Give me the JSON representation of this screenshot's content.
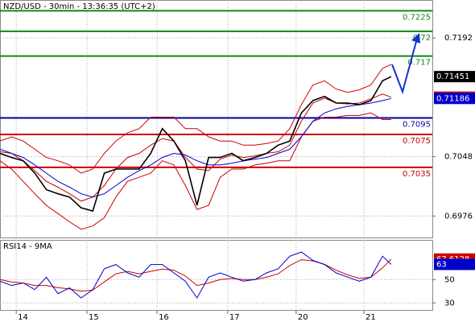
{
  "chart_data": [
    {
      "type": "line",
      "title": "NZD/USD - 30min - 13:36:35 (UTC+2)",
      "x": [
        0,
        2,
        4,
        6,
        8,
        10,
        12,
        14,
        16,
        18,
        20,
        22,
        24,
        26,
        28,
        30,
        32,
        34,
        36,
        38,
        40,
        42,
        44,
        46,
        48,
        50,
        52,
        54,
        56,
        58,
        60,
        62,
        64,
        66,
        67.5
      ],
      "xlim": [
        0,
        74.6
      ],
      "ylim": [
        0.695,
        0.7238
      ],
      "yticks": [
        0.6976,
        0.7048,
        0.7192
      ],
      "grid": true,
      "levels": [
        {
          "value": 0.7225,
          "color": "#118811"
        },
        {
          "value": 0.72,
          "color": "#118811"
        },
        {
          "value": 0.717,
          "color": "#118811"
        },
        {
          "value": 0.7095,
          "color": "#0000aa"
        },
        {
          "value": 0.7075,
          "color": "#cc0000"
        },
        {
          "value": 0.7035,
          "color": "#cc0000"
        }
      ],
      "series": [
        {
          "color": "#cc0000",
          "width": 1,
          "values": [
            0.7067,
            0.7072,
            0.7067,
            0.7057,
            0.7047,
            0.7043,
            0.7038,
            0.7028,
            0.7033,
            0.7052,
            0.7067,
            0.7077,
            0.7082,
            0.7096,
            0.7096,
            0.7096,
            0.7082,
            0.7082,
            0.7072,
            0.7067,
            0.7067,
            0.7062,
            0.7062,
            0.7064,
            0.7067,
            0.7082,
            0.7111,
            0.7135,
            0.714,
            0.713,
            0.7126,
            0.7129,
            0.7135,
            0.7155,
            0.716
          ]
        },
        {
          "color": "#cc0000",
          "width": 1,
          "values": [
            0.7043,
            0.7033,
            0.7018,
            0.7003,
            0.6989,
            0.6979,
            0.6969,
            0.696,
            0.6964,
            0.6974,
            0.6999,
            0.7018,
            0.7023,
            0.7028,
            0.7043,
            0.7038,
            0.7013,
            0.6984,
            0.6989,
            0.7023,
            0.7033,
            0.7033,
            0.7038,
            0.704,
            0.7043,
            0.7043,
            0.7072,
            0.7091,
            0.7096,
            0.7096,
            0.7098,
            0.7098,
            0.7101,
            0.7093,
            0.7093
          ]
        },
        {
          "color": "#cc0000",
          "width": 1,
          "box": true,
          "values": [
            0.7054,
            0.7052,
            0.7043,
            0.7031,
            0.7018,
            0.7011,
            0.7003,
            0.6994,
            0.6999,
            0.7013,
            0.7033,
            0.7047,
            0.7052,
            0.7062,
            0.707,
            0.7067,
            0.7047,
            0.7033,
            0.7031,
            0.7045,
            0.705,
            0.7047,
            0.7049,
            0.7052,
            0.7054,
            0.7062,
            0.7091,
            0.7113,
            0.7119,
            0.7113,
            0.7112,
            0.7113,
            0.7118,
            0.7124,
            0.71202
          ]
        },
        {
          "color": "#0000cc",
          "width": 1,
          "box": true,
          "values": [
            0.7057,
            0.7052,
            0.7047,
            0.7038,
            0.7028,
            0.7018,
            0.7011,
            0.7003,
            0.6999,
            0.7003,
            0.7013,
            0.7023,
            0.7031,
            0.7038,
            0.7047,
            0.7052,
            0.705,
            0.7043,
            0.7038,
            0.7038,
            0.704,
            0.7043,
            0.7045,
            0.7047,
            0.7052,
            0.7057,
            0.7072,
            0.7091,
            0.7101,
            0.7106,
            0.7109,
            0.7111,
            0.7113,
            0.7116,
            0.71186
          ]
        },
        {
          "color": "#000000",
          "width": 1.6,
          "box": true,
          "values": [
            0.7052,
            0.7047,
            0.7043,
            0.7028,
            0.7008,
            0.7003,
            0.6999,
            0.6986,
            0.6982,
            0.7028,
            0.7033,
            0.7033,
            0.7033,
            0.7052,
            0.7082,
            0.7067,
            0.7043,
            0.6989,
            0.7047,
            0.7047,
            0.7052,
            0.7043,
            0.7047,
            0.7052,
            0.7062,
            0.7067,
            0.7101,
            0.7116,
            0.7121,
            0.7113,
            0.7113,
            0.7111,
            0.7116,
            0.714,
            0.71451
          ]
        }
      ]
    },
    {
      "type": "line",
      "title": "RSI14 - 9MA",
      "x": [
        0,
        2,
        4,
        6,
        8,
        10,
        12,
        14,
        16,
        18,
        20,
        22,
        24,
        26,
        28,
        30,
        32,
        34,
        36,
        38,
        40,
        42,
        44,
        46,
        48,
        50,
        52,
        54,
        56,
        58,
        60,
        62,
        64,
        66,
        67.5
      ],
      "xlim": [
        0,
        74.6
      ],
      "xticks": [
        {
          "value": 2.8,
          "label": "14"
        },
        {
          "value": 15,
          "label": "15"
        },
        {
          "value": 27.1,
          "label": "16"
        },
        {
          "value": 39.3,
          "label": "17"
        },
        {
          "value": 51.1,
          "label": "20"
        },
        {
          "value": 62.8,
          "label": "21"
        }
      ],
      "ylim": [
        24,
        84
      ],
      "yticks": [
        30,
        50
      ],
      "grid": true,
      "series": [
        {
          "color": "#cc0000",
          "width": 1,
          "box": true,
          "values": [
            50,
            48,
            47,
            45,
            45,
            43,
            42,
            40,
            41,
            48,
            55,
            57,
            55,
            57,
            59,
            58,
            53,
            45,
            47,
            50,
            51,
            50,
            50,
            52,
            55,
            62,
            67,
            66,
            63,
            58,
            54,
            51,
            52,
            60,
            67.6128
          ]
        },
        {
          "color": "#0000cc",
          "width": 1,
          "box": true,
          "values": [
            48.6,
            45,
            47.1,
            41.4,
            52.1,
            37.9,
            42.9,
            34.3,
            41.4,
            59.3,
            62.9,
            55.7,
            52.1,
            62.9,
            62.9,
            55.7,
            48.6,
            34.3,
            52.1,
            55.7,
            52.1,
            48.6,
            50,
            55.7,
            59.3,
            70,
            73.6,
            66.4,
            62.9,
            55.7,
            52.1,
            48.6,
            52.1,
            70,
            63
          ]
        }
      ]
    }
  ]
}
